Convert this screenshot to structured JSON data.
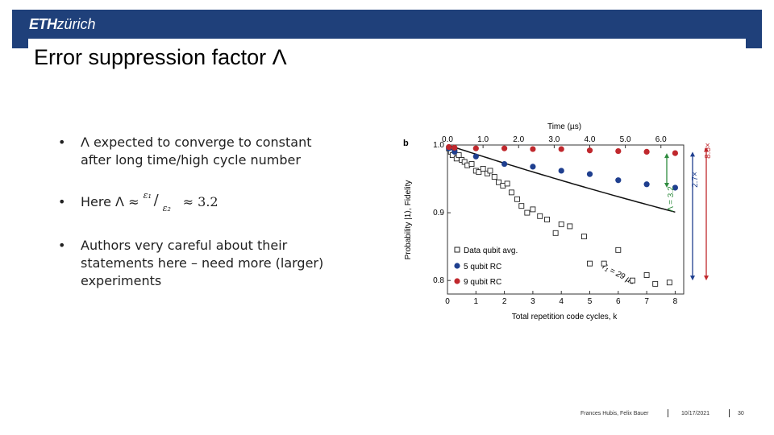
{
  "header": {
    "logo_bold": "ETH",
    "logo_italic": "zürich",
    "bar_color": "#1f407a"
  },
  "slide": {
    "title": "Error suppression factor Λ"
  },
  "bullets": {
    "b1_line1": "Λ expected to converge to constant",
    "b1_line2": "after long time/high cycle number",
    "b2_prefix": "Here Λ ≈",
    "b2_num": "ε₁",
    "b2_den": "ε₂",
    "b2_suffix": "≈ 3.2",
    "b3_line1": "Authors very careful about their",
    "b3_line2": "statements here – need more (larger)",
    "b3_line3": "experiments",
    "marker": "•"
  },
  "chart_data": {
    "type": "scatter",
    "panel_label": "b",
    "xlabel": "Total repetition code cycles, k",
    "ylabel": "Probability |1⟩, Fidelity",
    "x2label": "Time (µs)",
    "xlim": [
      0,
      8.3
    ],
    "ylim": [
      0.78,
      1.0
    ],
    "xticks": [
      0,
      1,
      2,
      3,
      4,
      5,
      6,
      7,
      8
    ],
    "yticks": [
      0.8,
      0.9,
      1.0
    ],
    "ytick_labels": [
      "0.8",
      "0.9",
      "1.0"
    ],
    "x2ticks": [
      0.0,
      1.0,
      2.0,
      3.0,
      4.0,
      5.0,
      6.0
    ],
    "x2tick_labels": [
      "0.0",
      "1.0",
      "2.0",
      "3.0",
      "4.0",
      "5.0",
      "6.0"
    ],
    "x2_per_cycle": 0.8,
    "legend": [
      "Data qubit avg.",
      "5 qubit RC",
      "9 qubit RC"
    ],
    "series": [
      {
        "name": "Data qubit avg.",
        "marker": "open-square",
        "color": "#222222",
        "x": [
          0.05,
          0.12,
          0.18,
          0.25,
          0.32,
          0.4,
          0.5,
          0.6,
          0.7,
          0.85,
          1.0,
          1.1,
          1.25,
          1.4,
          1.5,
          1.65,
          1.8,
          1.95,
          2.1,
          2.25,
          2.45,
          2.6,
          2.8,
          3.0,
          3.25,
          3.5,
          3.8,
          4.0,
          4.3,
          4.8,
          5.0,
          5.5,
          6.0,
          6.5,
          7.0,
          7.3,
          7.8
        ],
        "y": [
          0.995,
          0.99,
          0.985,
          0.993,
          0.98,
          0.985,
          0.978,
          0.975,
          0.97,
          0.972,
          0.962,
          0.96,
          0.965,
          0.958,
          0.962,
          0.953,
          0.945,
          0.94,
          0.943,
          0.93,
          0.92,
          0.91,
          0.9,
          0.905,
          0.895,
          0.89,
          0.87,
          0.883,
          0.88,
          0.865,
          0.825,
          0.825,
          0.845,
          0.8,
          0.808,
          0.795,
          0.797
        ]
      },
      {
        "name": "5 qubit RC",
        "marker": "filled-circle",
        "color": "#1f3f8f",
        "x": [
          0.05,
          0.25,
          1.0,
          2.0,
          3.0,
          4.0,
          5.0,
          6.0,
          7.0,
          8.0
        ],
        "y": [
          0.995,
          0.99,
          0.983,
          0.972,
          0.968,
          0.962,
          0.957,
          0.948,
          0.942,
          0.937
        ]
      },
      {
        "name": "9 qubit RC",
        "marker": "filled-circle",
        "color": "#c0282d",
        "x": [
          0.05,
          0.25,
          1.0,
          2.0,
          3.0,
          4.0,
          5.0,
          6.0,
          7.0,
          8.0
        ],
        "y": [
          0.997,
          0.996,
          0.995,
          0.995,
          0.994,
          0.994,
          0.992,
          0.991,
          0.99,
          0.988
        ]
      }
    ],
    "fit": {
      "label": "T₁ = 29 µs",
      "T1_us": 29,
      "us_per_cycle": 0.8
    },
    "annotations": {
      "lambda_label": "Λ = 3.2",
      "lambda_color": "#2e8b3e",
      "factor_27": "2.7×",
      "factor_27_color": "#1f3f8f",
      "factor_85": "8.5×",
      "factor_85_color": "#c0282d"
    }
  },
  "footer": {
    "authors": "Frances Hubis, Felix Bauer",
    "date": "10/17/2021",
    "page": "30"
  }
}
